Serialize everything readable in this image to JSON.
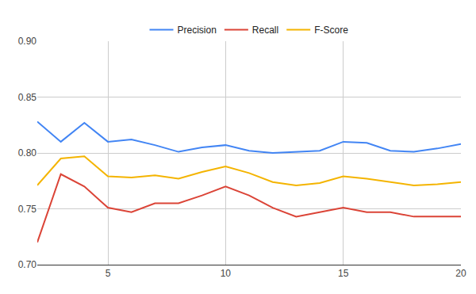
{
  "chart_data": {
    "type": "line",
    "x": [
      2,
      3,
      4,
      5,
      6,
      7,
      8,
      9,
      10,
      11,
      12,
      13,
      14,
      15,
      16,
      17,
      18,
      19,
      20
    ],
    "series": [
      {
        "name": "Precision",
        "color": "#4285f4",
        "values": [
          0.828,
          0.81,
          0.827,
          0.81,
          0.812,
          0.807,
          0.801,
          0.805,
          0.807,
          0.802,
          0.8,
          0.801,
          0.802,
          0.81,
          0.809,
          0.802,
          0.801,
          0.804,
          0.808
        ]
      },
      {
        "name": "Recall",
        "color": "#db4437",
        "values": [
          0.72,
          0.781,
          0.77,
          0.751,
          0.747,
          0.755,
          0.755,
          0.762,
          0.77,
          0.762,
          0.751,
          0.743,
          0.747,
          0.751,
          0.747,
          0.747,
          0.743,
          0.743,
          0.743
        ]
      },
      {
        "name": "F-Score",
        "color": "#f4b400",
        "values": [
          0.771,
          0.795,
          0.797,
          0.779,
          0.778,
          0.78,
          0.777,
          0.783,
          0.788,
          0.782,
          0.774,
          0.771,
          0.773,
          0.779,
          0.777,
          0.774,
          0.771,
          0.772,
          0.774
        ]
      }
    ],
    "xlim": [
      2,
      20
    ],
    "xticks": [
      5,
      10,
      15,
      20
    ],
    "ylim": [
      0.7,
      0.9
    ],
    "yticks": [
      {
        "value": 0.7,
        "label": "0.70"
      },
      0.75,
      {
        "value": 0.8,
        "label": "0.80"
      },
      0.85,
      {
        "value": 0.9,
        "label": "0.90"
      }
    ],
    "grid": true,
    "legend": "top"
  }
}
